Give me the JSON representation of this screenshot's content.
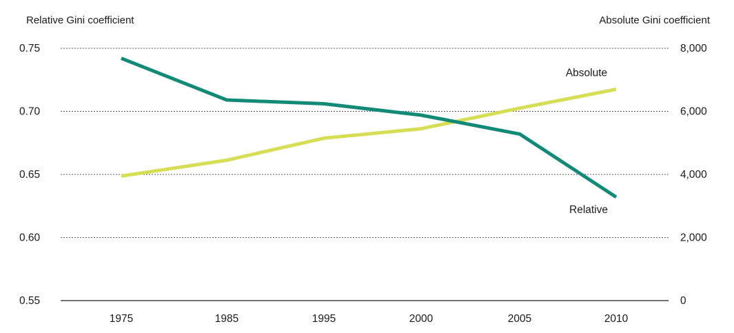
{
  "chart_data": {
    "type": "line",
    "ylabel_left": "Relative Gini coefficient",
    "ylabel_right": "Absolute Gini coefficient",
    "x_categories": [
      "1975",
      "1985",
      "1995",
      "2000",
      "2005",
      "2010"
    ],
    "y_left": {
      "min": 0.55,
      "max": 0.75,
      "ticks": [
        0.75,
        0.7,
        0.65,
        0.6,
        0.55
      ],
      "tick_labels": [
        "0.75",
        "0.70",
        "0.65",
        "0.60",
        "0.55"
      ]
    },
    "y_right": {
      "min": 0,
      "max": 8000,
      "ticks": [
        8000,
        6000,
        4000,
        2000,
        0
      ],
      "tick_labels": [
        "8,000",
        "6,000",
        "4,000",
        "2,000",
        "0"
      ]
    },
    "grid": true,
    "series": [
      {
        "name": "Relative",
        "axis": "left",
        "color": "#138a78",
        "values": [
          0.742,
          0.709,
          0.706,
          0.697,
          0.682,
          0.632
        ]
      },
      {
        "name": "Absolute",
        "axis": "right",
        "color": "#d6de56",
        "values": [
          3950,
          4450,
          5150,
          5450,
          6100,
          6700
        ]
      }
    ]
  }
}
